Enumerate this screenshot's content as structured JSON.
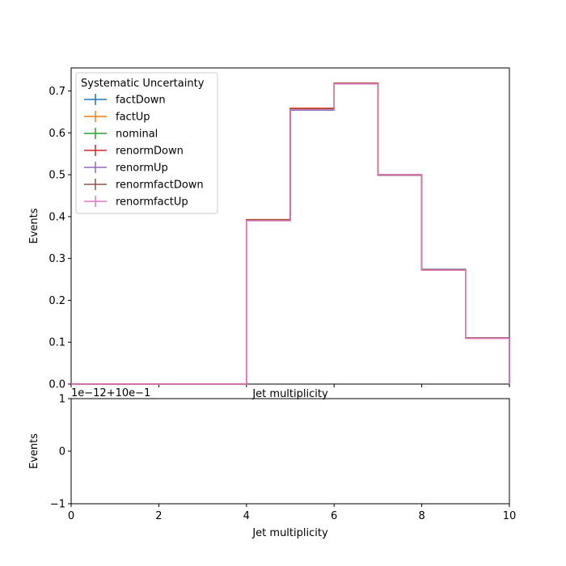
{
  "chart_data": [
    {
      "type": "line",
      "step": true,
      "ylabel": "Events",
      "xlabel": "Jet multiplicity",
      "xlim": [
        0,
        10
      ],
      "ylim": [
        0,
        0.755
      ],
      "yticks": [
        0.0,
        0.1,
        0.2,
        0.3,
        0.4,
        0.5,
        0.6,
        0.7
      ],
      "ytick_labels": [
        "0.0",
        "0.1",
        "0.2",
        "0.3",
        "0.4",
        "0.5",
        "0.6",
        "0.7"
      ],
      "xticks": [
        0,
        2,
        4,
        6,
        8,
        10
      ],
      "bin_edges": [
        0,
        1,
        2,
        3,
        4,
        5,
        6,
        7,
        8,
        9,
        10
      ],
      "legend": {
        "title": "Systematic Uncertainty",
        "placement": "upper-left"
      },
      "grid": false,
      "series": [
        {
          "name": "factDown",
          "color": "#1f77b4",
          "values": [
            0,
            0,
            0,
            0,
            0.391,
            0.654,
            0.717,
            0.499,
            0.274,
            0.11
          ]
        },
        {
          "name": "factUp",
          "color": "#ff7f0e",
          "values": [
            0,
            0,
            0,
            0,
            0.393,
            0.659,
            0.719,
            0.5,
            0.272,
            0.109
          ]
        },
        {
          "name": "nominal",
          "color": "#2ca02c",
          "values": [
            0,
            0,
            0,
            0,
            0.392,
            0.657,
            0.718,
            0.5,
            0.273,
            0.11
          ]
        },
        {
          "name": "renormDown",
          "color": "#d62728",
          "values": [
            0,
            0,
            0,
            0,
            0.392,
            0.658,
            0.718,
            0.499,
            0.273,
            0.11
          ]
        },
        {
          "name": "renormUp",
          "color": "#9467bd",
          "values": [
            0,
            0,
            0,
            0,
            0.391,
            0.656,
            0.717,
            0.5,
            0.273,
            0.11
          ]
        },
        {
          "name": "renormfactDown",
          "color": "#8c564b",
          "values": [
            0,
            0,
            0,
            0,
            0.392,
            0.657,
            0.718,
            0.499,
            0.273,
            0.11
          ]
        },
        {
          "name": "renormfactUp",
          "color": "#e377c2",
          "values": [
            0,
            0,
            0,
            0,
            0.39,
            0.655,
            0.717,
            0.5,
            0.272,
            0.109
          ]
        }
      ]
    },
    {
      "type": "line",
      "ylabel": "Events",
      "xlabel": "Jet multiplicity",
      "xlim": [
        0,
        10
      ],
      "ylim": [
        -1,
        1
      ],
      "yticks": [
        -1,
        0,
        1
      ],
      "ytick_labels": [
        "−1",
        "0",
        "1"
      ],
      "xticks": [
        0,
        2,
        4,
        6,
        8,
        10
      ],
      "xtick_labels": [
        "0",
        "2",
        "4",
        "6",
        "8",
        "10"
      ],
      "offset_text": "1e−12+10e−1",
      "grid": false,
      "series": []
    }
  ]
}
